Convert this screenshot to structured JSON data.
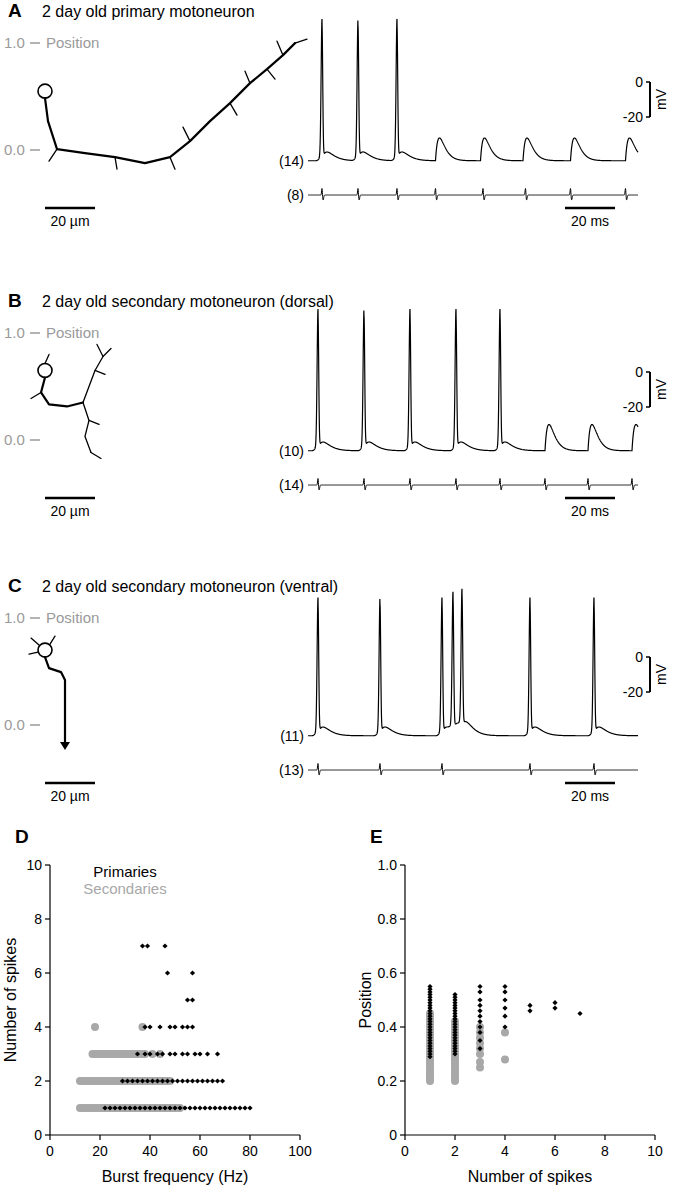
{
  "chart_data": [
    {
      "type": "trace",
      "panel_label": "A",
      "title": "2 day old primary motoneuron",
      "position_axis": {
        "label": "Position",
        "ticks": [
          {
            "value": 0,
            "label": "0.0"
          },
          {
            "value": 1,
            "label": "1.0"
          }
        ],
        "soma_position": 0.55
      },
      "morphology_scale": {
        "value": 20,
        "label": "20 µm"
      },
      "intracellular": {
        "count_label": "(14)",
        "xlim": [
          0,
          132
        ],
        "rest": -45,
        "spike_peak": 32,
        "psp_peak": -32,
        "spike_times": [
          5.6,
          20,
          35.6
        ],
        "psp_times": [
          51,
          69,
          86,
          105,
          127
        ]
      },
      "extracellular": {
        "count_label": "(8)",
        "unit_times": [
          5.6,
          20,
          35.6,
          51,
          70,
          87,
          105,
          127
        ]
      },
      "time_scale": {
        "value": 20,
        "label": "20 ms"
      },
      "voltage_scale": {
        "ticks": [
          0,
          -20
        ],
        "unit": "mV"
      }
    },
    {
      "type": "trace",
      "panel_label": "B",
      "title": "2 day old secondary motoneuron (dorsal)",
      "position_axis": {
        "label": "Position",
        "ticks": [
          {
            "value": 0,
            "label": "0.0"
          },
          {
            "value": 1,
            "label": "1.0"
          }
        ],
        "soma_position": 0.65
      },
      "morphology_scale": {
        "value": 20,
        "label": "20 µm"
      },
      "intracellular": {
        "count_label": "(10)",
        "xlim": [
          0,
          132
        ],
        "rest": -45,
        "spike_peak": 32,
        "psp_peak": -30,
        "spike_times": [
          4,
          22.4,
          40.8,
          59.2,
          76.8
        ],
        "psp_times": [
          94.8,
          112,
          129.6
        ]
      },
      "extracellular": {
        "count_label": "(14)",
        "unit_times": [
          4,
          22.4,
          40.8,
          59.2,
          76.8,
          94.8,
          112,
          129.6
        ]
      },
      "time_scale": {
        "value": 20,
        "label": "20 ms"
      },
      "voltage_scale": {
        "ticks": [
          0,
          -20
        ],
        "unit": "mV"
      }
    },
    {
      "type": "trace",
      "panel_label": "C",
      "title": "2 day old secondary motoneuron (ventral)",
      "position_axis": {
        "label": "Position",
        "ticks": [
          {
            "value": 0,
            "label": "0.0"
          },
          {
            "value": 1,
            "label": "1.0"
          }
        ],
        "soma_position": 0.7
      },
      "morphology_scale": {
        "value": 20,
        "label": "20 µm"
      },
      "intracellular": {
        "count_label": "(11)",
        "xlim": [
          0,
          132
        ],
        "rest": -45,
        "spike_peak": 30,
        "spike_times": [
          4,
          28.8,
          53.6,
          58,
          61.6,
          88.8,
          114.4
        ]
      },
      "extracellular": {
        "count_label": "(13)",
        "unit_times": [
          4,
          28.8,
          53.6,
          88.8,
          114.4
        ]
      },
      "time_scale": {
        "value": 20,
        "label": "20 ms"
      },
      "voltage_scale": {
        "ticks": [
          0,
          -20
        ],
        "unit": "mV"
      }
    },
    {
      "type": "scatter",
      "panel_label": "D",
      "x_label": "Burst frequency (Hz)",
      "y_label": "Number of spikes",
      "xlim": [
        0,
        100
      ],
      "xticks": [
        0,
        20,
        40,
        60,
        80,
        100
      ],
      "ylim": [
        0,
        10
      ],
      "yticks": [
        0,
        2,
        4,
        6,
        8,
        10
      ],
      "grid": false,
      "legend": "top-left",
      "series": [
        {
          "name": "Primaries",
          "color": "#000000",
          "marker": "diamond",
          "x": [
            22,
            24,
            26,
            28,
            30,
            32,
            34,
            36,
            38,
            40,
            42,
            44,
            46,
            48,
            50,
            52,
            54,
            56,
            58,
            60,
            62,
            64,
            66,
            68,
            70,
            72,
            74,
            76,
            78,
            80,
            29,
            31,
            33,
            35,
            37,
            39,
            41,
            43,
            45,
            47,
            49,
            51,
            53,
            55,
            57,
            59,
            61,
            63,
            65,
            67,
            69,
            35,
            38,
            40,
            43,
            45,
            48,
            50,
            53,
            55,
            58,
            60,
            63,
            67,
            38,
            40,
            44,
            48,
            50,
            53,
            55,
            57,
            55,
            57,
            47,
            57,
            37,
            39,
            46
          ],
          "values": [
            1,
            1,
            1,
            1,
            1,
            1,
            1,
            1,
            1,
            1,
            1,
            1,
            1,
            1,
            1,
            1,
            1,
            1,
            1,
            1,
            1,
            1,
            1,
            1,
            1,
            1,
            1,
            1,
            1,
            1,
            2,
            2,
            2,
            2,
            2,
            2,
            2,
            2,
            2,
            2,
            2,
            2,
            2,
            2,
            2,
            2,
            2,
            2,
            2,
            2,
            2,
            3,
            3,
            3,
            3,
            3,
            3,
            3,
            3,
            3,
            3,
            3,
            3,
            3,
            4,
            4,
            4,
            4,
            4,
            4,
            4,
            4,
            5,
            5,
            6,
            6,
            7,
            7,
            7
          ]
        },
        {
          "name": "Secondaries",
          "color": "#a8a8a8",
          "marker": "circle",
          "x": [
            12,
            13,
            14,
            15,
            16,
            17,
            18,
            19,
            20,
            21,
            22,
            23,
            24,
            25,
            26,
            27,
            28,
            29,
            30,
            31,
            32,
            33,
            34,
            35,
            36,
            37,
            38,
            39,
            40,
            41,
            42,
            43,
            44,
            45,
            46,
            47,
            48,
            49,
            50,
            51,
            52,
            12,
            13,
            14,
            15,
            16,
            17,
            18,
            19,
            20,
            21,
            22,
            23,
            24,
            25,
            26,
            27,
            28,
            29,
            30,
            31,
            32,
            33,
            34,
            35,
            36,
            37,
            38,
            39,
            40,
            41,
            42,
            43,
            44,
            45,
            46,
            47,
            48,
            17,
            18,
            19,
            20,
            21,
            22,
            23,
            24,
            25,
            26,
            27,
            28,
            29,
            30,
            31,
            32,
            33,
            34,
            35,
            36,
            37,
            38,
            41,
            44,
            18,
            37
          ],
          "values": [
            1,
            1,
            1,
            1,
            1,
            1,
            1,
            1,
            1,
            1,
            1,
            1,
            1,
            1,
            1,
            1,
            1,
            1,
            1,
            1,
            1,
            1,
            1,
            1,
            1,
            1,
            1,
            1,
            1,
            1,
            1,
            1,
            1,
            1,
            1,
            1,
            1,
            1,
            1,
            1,
            1,
            2,
            2,
            2,
            2,
            2,
            2,
            2,
            2,
            2,
            2,
            2,
            2,
            2,
            2,
            2,
            2,
            2,
            2,
            2,
            2,
            2,
            2,
            2,
            2,
            2,
            2,
            2,
            2,
            2,
            2,
            2,
            2,
            2,
            2,
            2,
            2,
            2,
            3,
            3,
            3,
            3,
            3,
            3,
            3,
            3,
            3,
            3,
            3,
            3,
            3,
            3,
            3,
            3,
            3,
            3,
            3,
            3,
            3,
            3,
            3,
            3,
            4,
            4
          ]
        }
      ]
    },
    {
      "type": "scatter",
      "panel_label": "E",
      "x_label": "Number of spikes",
      "y_label": "Position",
      "xlim": [
        0,
        10
      ],
      "xticks": [
        0,
        2,
        4,
        6,
        8,
        10
      ],
      "ylim": [
        0,
        1
      ],
      "yticks": [
        0,
        0.2,
        0.4,
        0.6,
        0.8,
        {
          "value": 1,
          "label": "1.0"
        }
      ],
      "grid": false,
      "series": [
        {
          "color": "#000000",
          "marker": "diamond",
          "x": [
            1,
            1,
            1,
            1,
            1,
            1,
            1,
            1,
            1,
            1,
            1,
            1,
            1,
            1,
            1,
            1,
            1,
            1,
            1,
            1,
            1,
            1,
            1,
            1,
            1,
            1,
            1,
            2,
            2,
            2,
            2,
            2,
            2,
            2,
            2,
            2,
            2,
            2,
            2,
            2,
            2,
            2,
            2,
            2,
            2,
            2,
            2,
            2,
            2,
            2,
            3,
            3,
            3,
            3,
            3,
            3,
            3,
            3,
            3,
            3,
            3,
            4,
            4,
            4,
            4,
            4,
            4,
            5,
            5,
            6,
            6,
            7
          ],
          "values": [
            0.29,
            0.3,
            0.31,
            0.32,
            0.33,
            0.34,
            0.35,
            0.36,
            0.37,
            0.38,
            0.39,
            0.4,
            0.41,
            0.42,
            0.43,
            0.44,
            0.45,
            0.46,
            0.47,
            0.48,
            0.49,
            0.5,
            0.51,
            0.52,
            0.53,
            0.54,
            0.55,
            0.3,
            0.31,
            0.32,
            0.33,
            0.34,
            0.35,
            0.36,
            0.37,
            0.38,
            0.39,
            0.4,
            0.41,
            0.42,
            0.43,
            0.44,
            0.45,
            0.46,
            0.47,
            0.48,
            0.49,
            0.5,
            0.51,
            0.52,
            0.32,
            0.35,
            0.38,
            0.4,
            0.42,
            0.44,
            0.46,
            0.48,
            0.5,
            0.53,
            0.55,
            0.4,
            0.44,
            0.47,
            0.5,
            0.53,
            0.55,
            0.46,
            0.48,
            0.47,
            0.49,
            0.45
          ]
        },
        {
          "color": "#a8a8a8",
          "marker": "circle",
          "x": [
            1,
            1,
            1,
            1,
            1,
            1,
            1,
            1,
            1,
            1,
            1,
            1,
            1,
            1,
            1,
            1,
            1,
            1,
            1,
            1,
            1,
            1,
            1,
            1,
            1,
            1,
            2,
            2,
            2,
            2,
            2,
            2,
            2,
            2,
            2,
            2,
            2,
            2,
            2,
            2,
            2,
            2,
            2,
            2,
            2,
            2,
            2,
            2,
            2,
            3,
            3,
            3,
            3,
            3,
            3,
            3,
            3,
            4,
            4
          ],
          "values": [
            0.2,
            0.21,
            0.22,
            0.23,
            0.24,
            0.25,
            0.26,
            0.27,
            0.28,
            0.29,
            0.3,
            0.31,
            0.32,
            0.33,
            0.34,
            0.35,
            0.36,
            0.37,
            0.38,
            0.39,
            0.4,
            0.41,
            0.42,
            0.43,
            0.44,
            0.45,
            0.2,
            0.21,
            0.22,
            0.23,
            0.24,
            0.25,
            0.26,
            0.27,
            0.28,
            0.29,
            0.3,
            0.31,
            0.32,
            0.33,
            0.34,
            0.35,
            0.36,
            0.37,
            0.38,
            0.39,
            0.4,
            0.41,
            0.42,
            0.25,
            0.27,
            0.3,
            0.32,
            0.34,
            0.36,
            0.38,
            0.4,
            0.28,
            0.38
          ]
        }
      ]
    }
  ]
}
